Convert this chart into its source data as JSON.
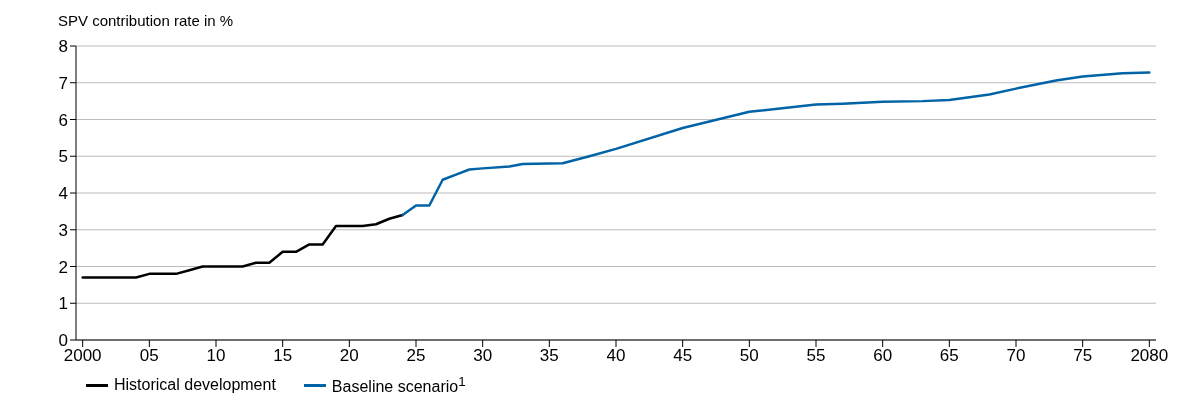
{
  "chart_data": {
    "type": "line",
    "ylabel": "SPV contribution rate in %",
    "xlim": [
      1999.5,
      2080.5
    ],
    "ylim": [
      0,
      8
    ],
    "yticks": [
      0,
      1,
      2,
      3,
      4,
      5,
      6,
      7,
      8
    ],
    "xticks": [
      {
        "value": 2000,
        "label": "2000"
      },
      {
        "value": 2005,
        "label": "05"
      },
      {
        "value": 2010,
        "label": "10"
      },
      {
        "value": 2015,
        "label": "15"
      },
      {
        "value": 2020,
        "label": "20"
      },
      {
        "value": 2025,
        "label": "25"
      },
      {
        "value": 2030,
        "label": "30"
      },
      {
        "value": 2035,
        "label": "35"
      },
      {
        "value": 2040,
        "label": "40"
      },
      {
        "value": 2045,
        "label": "45"
      },
      {
        "value": 2050,
        "label": "50"
      },
      {
        "value": 2055,
        "label": "55"
      },
      {
        "value": 2060,
        "label": "60"
      },
      {
        "value": 2065,
        "label": "65"
      },
      {
        "value": 2070,
        "label": "70"
      },
      {
        "value": 2075,
        "label": "75"
      },
      {
        "value": 2080,
        "label": "2080"
      }
    ],
    "grid": "y",
    "legend": "bottom left",
    "marker": "none",
    "line_style": "solid",
    "series": [
      {
        "name": "Historical development",
        "color": "#000000",
        "x": [
          2000,
          2001,
          2002,
          2003,
          2004,
          2005,
          2006,
          2007,
          2008,
          2009,
          2010,
          2011,
          2012,
          2013,
          2014,
          2015,
          2016,
          2017,
          2018,
          2019,
          2020,
          2021,
          2022,
          2023,
          2024
        ],
        "values": [
          1.7,
          1.7,
          1.7,
          1.7,
          1.7,
          1.8,
          1.8,
          1.8,
          1.9,
          2.0,
          2.0,
          2.0,
          2.0,
          2.1,
          2.1,
          2.4,
          2.4,
          2.6,
          2.6,
          3.1,
          3.1,
          3.1,
          3.15,
          3.3,
          3.4
        ]
      },
      {
        "name": "Baseline scenario$^{1}$",
        "color": "#0063a6",
        "x": [
          2024,
          2025,
          2026,
          2027,
          2028,
          2029,
          2030,
          2032,
          2033,
          2036,
          2038,
          2040,
          2045,
          2050,
          2055,
          2057,
          2060,
          2063,
          2065,
          2068,
          2070,
          2073,
          2075,
          2078,
          2080
        ],
        "values": [
          3.4,
          3.66,
          3.66,
          4.36,
          4.5,
          4.64,
          4.67,
          4.72,
          4.79,
          4.81,
          5.0,
          5.2,
          5.77,
          6.21,
          6.41,
          6.43,
          6.48,
          6.5,
          6.53,
          6.68,
          6.84,
          7.06,
          7.17,
          7.26,
          7.28
        ]
      }
    ]
  }
}
